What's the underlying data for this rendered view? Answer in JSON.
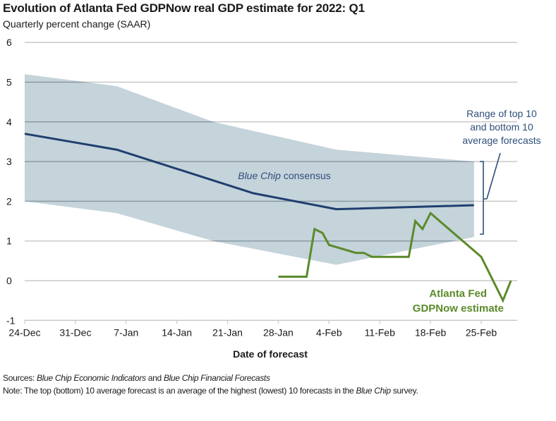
{
  "header": {
    "title": "Evolution of Atlanta Fed GDPNow real GDP estimate for 2022: Q1",
    "subtitle": "Quarterly percent change (SAAR)"
  },
  "footer": {
    "sources_label": "Sources:",
    "sources_italic_1": "Blue Chip Economic Indicators",
    "sources_and": " and ",
    "sources_italic_2": "Blue Chip Financial Forecasts",
    "note_label": "Note:",
    "note_text_1": " The top (bottom) 10 average forecast is an average of the highest (lowest) 10 forecasts in the ",
    "note_italic": "Blue Chip",
    "note_text_2": " survey."
  },
  "colors": {
    "band": "#c5d3db",
    "consensus": "#1f3f6e",
    "gdpnow": "#5b8a2a",
    "grid": "#c8c8c8",
    "grid_in_band": "#8c9aa3",
    "annotation": "#2e4f7a"
  },
  "chart_data": {
    "type": "line",
    "title": "Evolution of Atlanta Fed GDPNow real GDP estimate for 2022: Q1",
    "subtitle": "Quarterly percent change (SAAR)",
    "xlabel": "Date of forecast",
    "ylabel": "",
    "x_unit": "days since 24-Dec (2021)",
    "xlim": [
      0,
      68
    ],
    "ylim": [
      -1,
      6
    ],
    "yticks": [
      -1,
      0,
      1,
      2,
      3,
      4,
      5,
      6
    ],
    "xticks": [
      {
        "day": 0,
        "label": "24-Dec"
      },
      {
        "day": 7,
        "label": "31-Dec"
      },
      {
        "day": 14,
        "label": "7-Jan"
      },
      {
        "day": 21,
        "label": "14-Jan"
      },
      {
        "day": 28,
        "label": "21-Jan"
      },
      {
        "day": 35,
        "label": "28-Jan"
      },
      {
        "day": 42,
        "label": "4-Feb"
      },
      {
        "day": 49,
        "label": "11-Feb"
      },
      {
        "day": 56,
        "label": "18-Feb"
      },
      {
        "day": 63,
        "label": "25-Feb"
      }
    ],
    "grid": true,
    "band": {
      "name": "Range of top 10 and bottom 10 average forecasts",
      "x": [
        0,
        12.7,
        26,
        43,
        62
      ],
      "top": [
        5.2,
        4.9,
        4.0,
        3.3,
        3.0
      ],
      "bottom": [
        2.0,
        1.7,
        1.0,
        0.4,
        1.1
      ]
    },
    "series": [
      {
        "name": "Blue Chip consensus",
        "x": [
          0,
          12.7,
          31.6,
          43,
          62
        ],
        "values": [
          3.7,
          3.3,
          2.2,
          1.8,
          1.9
        ]
      },
      {
        "name": "Atlanta Fed GDPNow estimate",
        "x": [
          35,
          38.9,
          40,
          41.1,
          42,
          45.7,
          46.8,
          47.9,
          53,
          53.9,
          54.9,
          56,
          63,
          66,
          67.1
        ],
        "values": [
          0.1,
          0.1,
          1.3,
          1.2,
          0.9,
          0.7,
          0.7,
          0.6,
          0.6,
          1.5,
          1.3,
          1.7,
          0.6,
          -0.5,
          0.0
        ]
      }
    ],
    "annotations": [
      {
        "text": "Blue Chip consensus",
        "italic_part": "Blue Chip",
        "target": "Blue Chip consensus"
      },
      {
        "lines": [
          "Atlanta Fed",
          "GDPNow estimate"
        ],
        "target": "Atlanta Fed GDPNow estimate"
      },
      {
        "lines": [
          "Range of top 10",
          "and bottom 10",
          "average forecasts"
        ],
        "target": "band"
      }
    ]
  }
}
